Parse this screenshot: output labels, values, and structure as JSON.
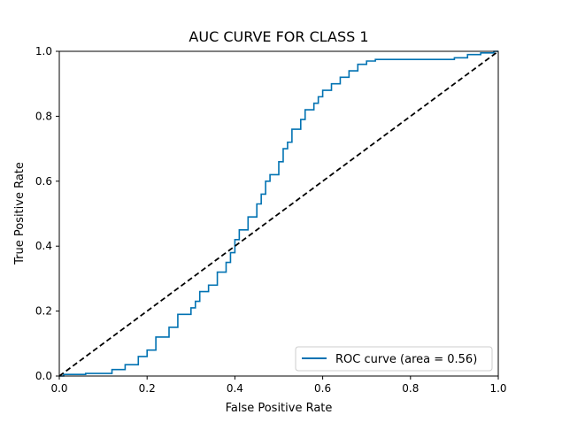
{
  "chart_data": {
    "type": "line",
    "title": "AUC CURVE FOR CLASS 1",
    "xlabel": "False Positive Rate",
    "ylabel": "True Positive Rate",
    "xlim": [
      0,
      1
    ],
    "ylim": [
      0,
      1
    ],
    "xticks": [
      0,
      0.2,
      0.4,
      0.6,
      0.8,
      1.0
    ],
    "xtick_labels": [
      "0.0",
      "0.2",
      "0.4",
      "0.6",
      "0.8",
      "1.0"
    ],
    "yticks": [
      0,
      0.2,
      0.4,
      0.6,
      0.8,
      1.0
    ],
    "ytick_labels": [
      "0.0",
      "0.2",
      "0.4",
      "0.6",
      "0.8",
      "1.0"
    ],
    "grid": false,
    "legend_position": "lower-right",
    "series": [
      {
        "name": "ROC curve (area = 0.56)",
        "color": "#0072b2",
        "style": "solid-step",
        "x": [
          0,
          0.01,
          0.06,
          0.12,
          0.15,
          0.18,
          0.2,
          0.22,
          0.25,
          0.27,
          0.3,
          0.31,
          0.32,
          0.34,
          0.36,
          0.38,
          0.39,
          0.4,
          0.41,
          0.43,
          0.45,
          0.46,
          0.47,
          0.48,
          0.5,
          0.51,
          0.52,
          0.53,
          0.55,
          0.56,
          0.58,
          0.59,
          0.6,
          0.62,
          0.64,
          0.66,
          0.68,
          0.7,
          0.72,
          0.75,
          0.78,
          0.8,
          0.85,
          0.9,
          0.93,
          0.96,
          0.99,
          1.0
        ],
        "y": [
          0,
          0.005,
          0.008,
          0.02,
          0.035,
          0.06,
          0.08,
          0.12,
          0.15,
          0.19,
          0.21,
          0.23,
          0.26,
          0.28,
          0.32,
          0.35,
          0.38,
          0.42,
          0.45,
          0.49,
          0.53,
          0.56,
          0.6,
          0.62,
          0.66,
          0.7,
          0.72,
          0.76,
          0.79,
          0.82,
          0.84,
          0.86,
          0.88,
          0.9,
          0.92,
          0.94,
          0.96,
          0.97,
          0.975,
          0.975,
          0.975,
          0.975,
          0.975,
          0.98,
          0.99,
          0.995,
          1.0,
          1.0
        ]
      },
      {
        "name": "",
        "color": "#000000",
        "style": "dashed",
        "x": [
          0,
          1
        ],
        "y": [
          0,
          1
        ]
      }
    ]
  }
}
